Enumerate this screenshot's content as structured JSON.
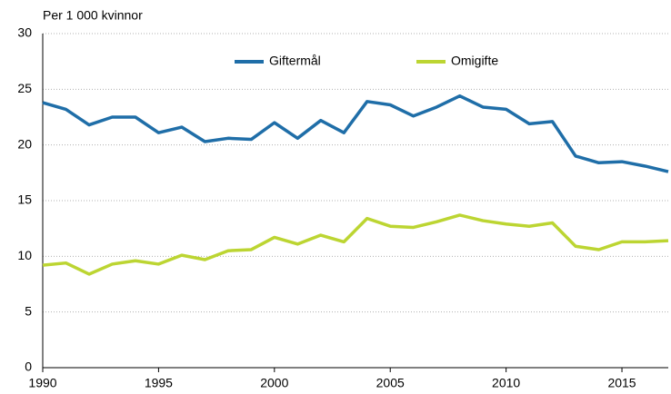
{
  "chart_data": {
    "type": "line",
    "ylabel": "Per 1 000 kvinnor",
    "x": [
      1990,
      1991,
      1992,
      1993,
      1994,
      1995,
      1996,
      1997,
      1998,
      1999,
      2000,
      2001,
      2002,
      2003,
      2004,
      2005,
      2006,
      2007,
      2008,
      2009,
      2010,
      2011,
      2012,
      2013,
      2014,
      2015,
      2016,
      2017
    ],
    "series": [
      {
        "name": "Giftermål",
        "color": "#1f6ea8",
        "values": [
          23.8,
          23.2,
          21.8,
          22.5,
          22.5,
          21.1,
          21.6,
          20.3,
          20.6,
          20.5,
          22.0,
          20.6,
          22.2,
          21.1,
          23.9,
          23.6,
          22.6,
          23.4,
          24.4,
          23.4,
          23.2,
          21.9,
          22.1,
          19.0,
          18.4,
          18.5,
          18.1,
          17.6
        ]
      },
      {
        "name": "Omigifte",
        "color": "#bcd532",
        "values": [
          9.2,
          9.4,
          8.4,
          9.3,
          9.6,
          9.3,
          10.1,
          9.7,
          10.5,
          10.6,
          11.7,
          11.1,
          11.9,
          11.3,
          13.4,
          12.7,
          12.6,
          13.1,
          13.7,
          13.2,
          12.9,
          12.7,
          13.0,
          10.9,
          10.6,
          11.3,
          11.3,
          11.4
        ]
      }
    ],
    "xlim": [
      1990,
      2017
    ],
    "xticks": [
      1990,
      1995,
      2000,
      2005,
      2010,
      2015
    ],
    "ylim": [
      0,
      30
    ],
    "yticks": [
      0,
      5,
      10,
      15,
      20,
      25,
      30
    ],
    "grid": true,
    "legend": "top"
  }
}
